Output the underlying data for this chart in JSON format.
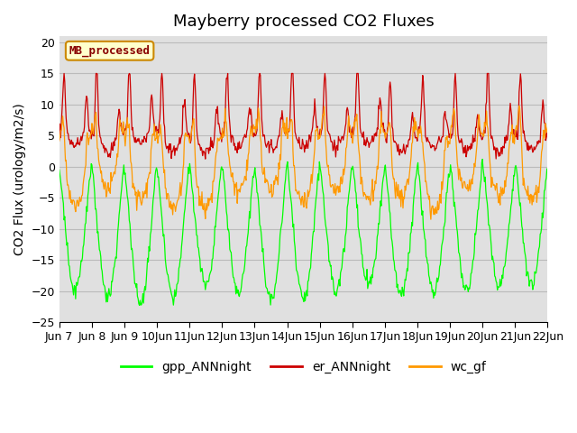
{
  "title": "Mayberry processed CO2 Fluxes",
  "ylabel": "CO2 Flux (urology/m2/s)",
  "ylim": [
    -25,
    21
  ],
  "yticks": [
    -25,
    -20,
    -15,
    -10,
    -5,
    0,
    5,
    10,
    15,
    20
  ],
  "xlabels": [
    "Jun 7",
    "Jun 8",
    "Jun 9",
    "Jun 10",
    "Jun 11",
    "Jun 12",
    "Jun 13",
    "Jun 14",
    "Jun 15",
    "Jun 16",
    "Jun 17",
    "Jun 18",
    "Jun 19",
    "Jun 20",
    "Jun 21",
    "Jun 22"
  ],
  "n_days": 15,
  "pts_per_day": 48,
  "legend_labels": [
    "gpp_ANNnight",
    "er_ANNnight",
    "wc_gf"
  ],
  "line_colors": [
    "#00ff00",
    "#cc0000",
    "#ff9900"
  ],
  "legend_box_color": "#ffffcc",
  "legend_box_edge": "#cc8800",
  "legend_text_color": "#880000",
  "legend_box_text": "MB_processed",
  "grid_color": "#bbbbbb",
  "bg_color": "#e0e0e0",
  "title_fontsize": 13,
  "axis_fontsize": 10,
  "tick_fontsize": 9,
  "line_width": 0.9
}
